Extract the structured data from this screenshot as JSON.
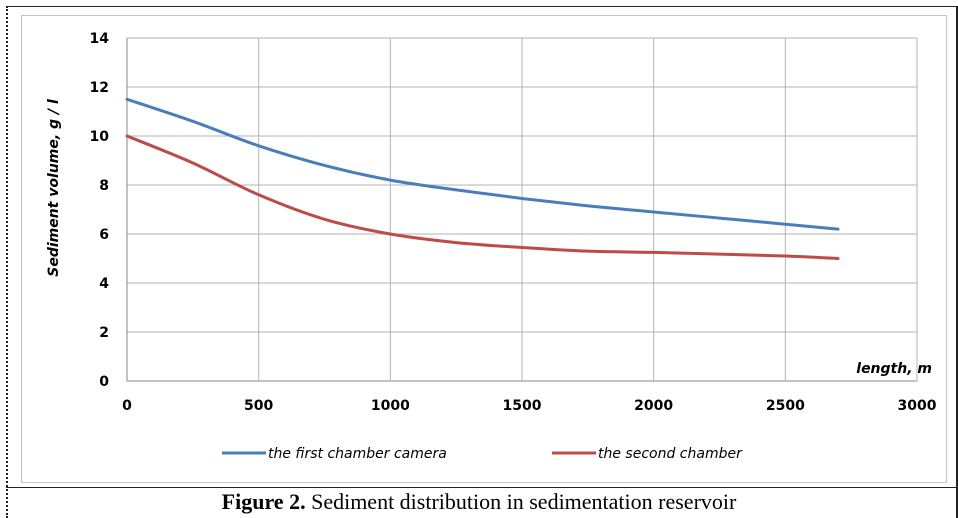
{
  "caption": {
    "label": "Figure 2.",
    "text": " Sediment distribution in sedimentation reservoir"
  },
  "chart_data": {
    "type": "line",
    "xlabel": "length, m",
    "ylabel": "Sediment volume, g / l",
    "xlim": [
      0,
      3000
    ],
    "ylim": [
      0,
      14
    ],
    "xticks": [
      0,
      500,
      1000,
      1500,
      2000,
      2500,
      3000
    ],
    "yticks": [
      0,
      2,
      4,
      6,
      8,
      10,
      12,
      14
    ],
    "grid": true,
    "legend_position": "bottom",
    "series": [
      {
        "name": "the first chamber camera",
        "color": "#4a7ebb",
        "x": [
          0,
          250,
          500,
          750,
          1000,
          1250,
          1500,
          1750,
          2000,
          2250,
          2500,
          2700
        ],
        "y": [
          11.5,
          10.6,
          9.6,
          8.8,
          8.2,
          7.8,
          7.45,
          7.15,
          6.9,
          6.65,
          6.4,
          6.2
        ]
      },
      {
        "name": "the second chamber",
        "color": "#be4b48",
        "x": [
          0,
          250,
          500,
          750,
          1000,
          1250,
          1500,
          1750,
          2000,
          2250,
          2500,
          2700
        ],
        "y": [
          10.0,
          8.9,
          7.6,
          6.6,
          6.0,
          5.65,
          5.45,
          5.3,
          5.25,
          5.18,
          5.1,
          5.0
        ]
      }
    ]
  }
}
